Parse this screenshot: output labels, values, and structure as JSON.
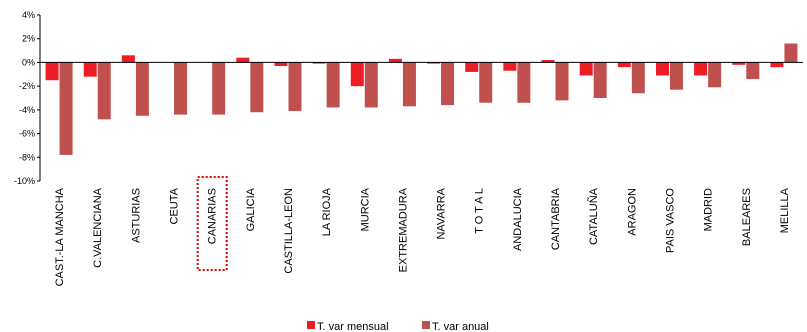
{
  "chart_data": {
    "type": "bar",
    "categories": [
      "CAST.-LA MANCHA",
      "C.VALENCIANA",
      "ASTURIAS",
      "CEUTA",
      "CANARIAS",
      "GALICIA",
      "CASTILLA-LEON",
      "LA RIOJA",
      "MURCIA",
      "EXTREMADURA",
      "NAVARRA",
      "T O T A L",
      "ANDALUCIA",
      "CANTABRIA",
      "CATALUÑA",
      "ARAGON",
      "PAIS VASCO",
      "MADRID",
      "BALEARES",
      "MELILLA"
    ],
    "highlighted_category": "CANARIAS",
    "series": [
      {
        "name": "T. var mensual",
        "color": "#ee1c24",
        "values": [
          -1.5,
          -1.2,
          0.6,
          0.0,
          0.0,
          0.4,
          -0.3,
          -0.1,
          -2.0,
          0.3,
          -0.1,
          -0.8,
          -0.7,
          0.2,
          -1.1,
          -0.4,
          -1.1,
          -1.1,
          -0.2,
          -0.4
        ]
      },
      {
        "name": "T. var anual",
        "color": "#c0504d",
        "values": [
          -7.8,
          -4.8,
          -4.5,
          -4.4,
          -4.4,
          -4.2,
          -4.1,
          -3.8,
          -3.8,
          -3.7,
          -3.6,
          -3.4,
          -3.4,
          -3.2,
          -3.0,
          -2.6,
          -2.3,
          -2.1,
          -1.4,
          1.6
        ]
      }
    ],
    "ylim": [
      -10,
      4
    ],
    "yticks": [
      "4%",
      "2%",
      "0%",
      "-2%",
      "-4%",
      "-6%",
      "-8%",
      "-10%"
    ],
    "ytick_values": [
      4,
      2,
      0,
      -2,
      -4,
      -6,
      -8,
      -10
    ],
    "legend_position": "bottom",
    "grid": false
  }
}
